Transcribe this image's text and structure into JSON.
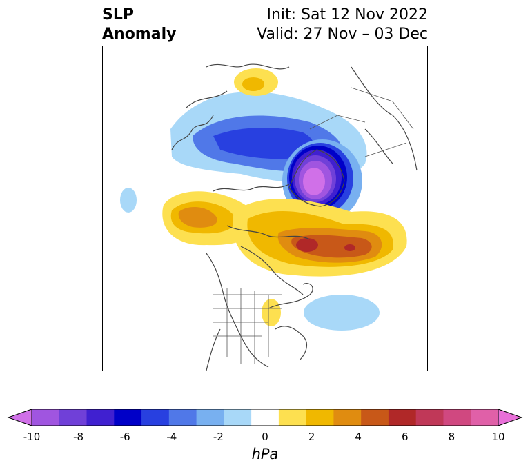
{
  "title": {
    "left_line1": "SLP",
    "left_line2": "Anomaly",
    "right_line1": "Init: Sat 12 Nov 2022",
    "right_line2": "Valid: 27 Nov – 03 Dec"
  },
  "colorbar": {
    "unit": "hPa",
    "ticks": [
      "-10",
      "-8",
      "-6",
      "-4",
      "-2",
      "0",
      "2",
      "4",
      "6",
      "8",
      "10"
    ],
    "colors": [
      "#d070e8",
      "#a055e0",
      "#7040d8",
      "#4020d0",
      "#0000c8",
      "#2840e0",
      "#5078e8",
      "#78b0f0",
      "#a8d8f8",
      "#ffffff",
      "#fde050",
      "#f0b800",
      "#e08c10",
      "#c85818",
      "#b02828",
      "#c03858",
      "#d04880",
      "#e060a8",
      "#e870d8"
    ],
    "extend": "both"
  }
}
